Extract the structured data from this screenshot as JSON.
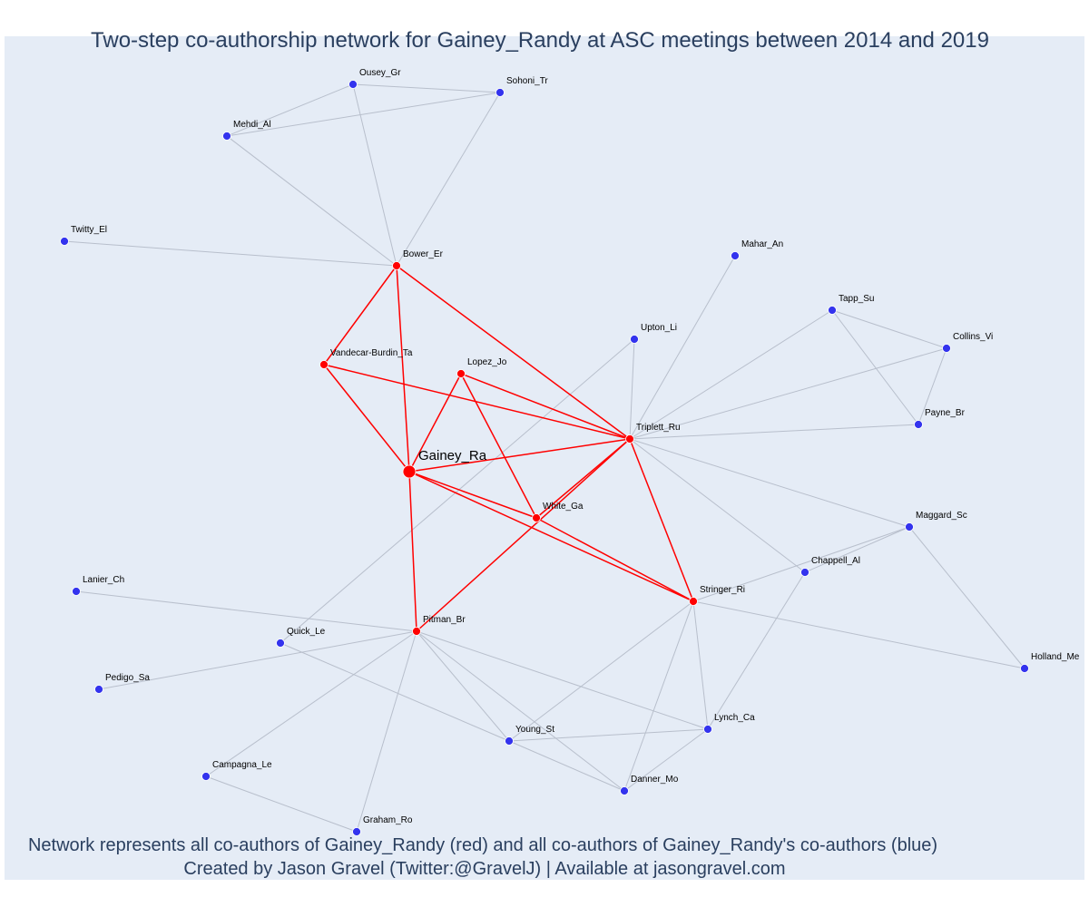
{
  "title": "Two-step co-authorship network for Gainey_Randy at ASC meetings between 2014 and 2019",
  "footer": {
    "line1": "Network represents all co-authors of Gainey_Randy (red) and all co-authors of Gainey_Randy's co-authors (blue)",
    "line2": "Created by Jason Gravel (Twitter:@GravelJ) | Available at jasongravel.com"
  },
  "colors": {
    "background": "#e5ecf6",
    "first_degree": "#ff0000",
    "second_degree": "#3333ee",
    "edge_first": "#ff0000",
    "edge_second": "#b8bfcc",
    "text": "#2a3f5f"
  },
  "nodes": [
    {
      "id": "Gainey_Ra",
      "label": "Gainey_Ra",
      "group": "center"
    },
    {
      "id": "Bower_Er",
      "label": "Bower_Er",
      "group": "first"
    },
    {
      "id": "Vandecar-Burdin_Ta",
      "label": "Vandecar-Burdin_Ta",
      "group": "first"
    },
    {
      "id": "Lopez_Jo",
      "label": "Lopez_Jo",
      "group": "first"
    },
    {
      "id": "Triplett_Ru",
      "label": "Triplett_Ru",
      "group": "first"
    },
    {
      "id": "White_Ga",
      "label": "White_Ga",
      "group": "first"
    },
    {
      "id": "Stringer_Ri",
      "label": "Stringer_Ri",
      "group": "first"
    },
    {
      "id": "Pitman_Br",
      "label": "Pitman_Br",
      "group": "first"
    },
    {
      "id": "Ousey_Gr",
      "label": "Ousey_Gr",
      "group": "second"
    },
    {
      "id": "Sohoni_Tr",
      "label": "Sohoni_Tr",
      "group": "second"
    },
    {
      "id": "Mehdi_Al",
      "label": "Mehdi_Al",
      "group": "second"
    },
    {
      "id": "Twitty_El",
      "label": "Twitty_El",
      "group": "second"
    },
    {
      "id": "Mahar_An",
      "label": "Mahar_An",
      "group": "second"
    },
    {
      "id": "Tapp_Su",
      "label": "Tapp_Su",
      "group": "second"
    },
    {
      "id": "Upton_Li",
      "label": "Upton_Li",
      "group": "second"
    },
    {
      "id": "Collins_Vi",
      "label": "Collins_Vi",
      "group": "second"
    },
    {
      "id": "Payne_Br",
      "label": "Payne_Br",
      "group": "second"
    },
    {
      "id": "Maggard_Sc",
      "label": "Maggard_Sc",
      "group": "second"
    },
    {
      "id": "Chappell_Al",
      "label": "Chappell_Al",
      "group": "second"
    },
    {
      "id": "Lanier_Ch",
      "label": "Lanier_Ch",
      "group": "second"
    },
    {
      "id": "Quick_Le",
      "label": "Quick_Le",
      "group": "second"
    },
    {
      "id": "Pedigo_Sa",
      "label": "Pedigo_Sa",
      "group": "second"
    },
    {
      "id": "Holland_Me",
      "label": "Holland_Me",
      "group": "second"
    },
    {
      "id": "Lynch_Ca",
      "label": "Lynch_Ca",
      "group": "second"
    },
    {
      "id": "Young_St",
      "label": "Young_St",
      "group": "second"
    },
    {
      "id": "Campagna_Le",
      "label": "Campagna_Le",
      "group": "second"
    },
    {
      "id": "Danner_Mo",
      "label": "Danner_Mo",
      "group": "second"
    },
    {
      "id": "Graham_Ro",
      "label": "Graham_Ro",
      "group": "second"
    }
  ],
  "edges": [
    {
      "source": "Gainey_Ra",
      "target": "Bower_Er",
      "type": "first"
    },
    {
      "source": "Gainey_Ra",
      "target": "Vandecar-Burdin_Ta",
      "type": "first"
    },
    {
      "source": "Gainey_Ra",
      "target": "Lopez_Jo",
      "type": "first"
    },
    {
      "source": "Gainey_Ra",
      "target": "Triplett_Ru",
      "type": "first"
    },
    {
      "source": "Gainey_Ra",
      "target": "White_Ga",
      "type": "first"
    },
    {
      "source": "Gainey_Ra",
      "target": "Stringer_Ri",
      "type": "first"
    },
    {
      "source": "Gainey_Ra",
      "target": "Pitman_Br",
      "type": "first"
    },
    {
      "source": "Bower_Er",
      "target": "Vandecar-Burdin_Ta",
      "type": "first"
    },
    {
      "source": "Bower_Er",
      "target": "Triplett_Ru",
      "type": "first"
    },
    {
      "source": "Vandecar-Burdin_Ta",
      "target": "Triplett_Ru",
      "type": "first"
    },
    {
      "source": "Lopez_Jo",
      "target": "Triplett_Ru",
      "type": "first"
    },
    {
      "source": "Lopez_Jo",
      "target": "White_Ga",
      "type": "first"
    },
    {
      "source": "Triplett_Ru",
      "target": "White_Ga",
      "type": "first"
    },
    {
      "source": "Triplett_Ru",
      "target": "Stringer_Ri",
      "type": "first"
    },
    {
      "source": "Triplett_Ru",
      "target": "Pitman_Br",
      "type": "first"
    },
    {
      "source": "White_Ga",
      "target": "Stringer_Ri",
      "type": "first"
    },
    {
      "source": "Bower_Er",
      "target": "Ousey_Gr",
      "type": "second"
    },
    {
      "source": "Bower_Er",
      "target": "Sohoni_Tr",
      "type": "second"
    },
    {
      "source": "Bower_Er",
      "target": "Mehdi_Al",
      "type": "second"
    },
    {
      "source": "Bower_Er",
      "target": "Twitty_El",
      "type": "second"
    },
    {
      "source": "Ousey_Gr",
      "target": "Sohoni_Tr",
      "type": "second"
    },
    {
      "source": "Ousey_Gr",
      "target": "Mehdi_Al",
      "type": "second"
    },
    {
      "source": "Mehdi_Al",
      "target": "Sohoni_Tr",
      "type": "second"
    },
    {
      "source": "Triplett_Ru",
      "target": "Mahar_An",
      "type": "second"
    },
    {
      "source": "Triplett_Ru",
      "target": "Upton_Li",
      "type": "second"
    },
    {
      "source": "Triplett_Ru",
      "target": "Tapp_Su",
      "type": "second"
    },
    {
      "source": "Triplett_Ru",
      "target": "Collins_Vi",
      "type": "second"
    },
    {
      "source": "Triplett_Ru",
      "target": "Payne_Br",
      "type": "second"
    },
    {
      "source": "Triplett_Ru",
      "target": "Maggard_Sc",
      "type": "second"
    },
    {
      "source": "Triplett_Ru",
      "target": "Chappell_Al",
      "type": "second"
    },
    {
      "source": "Tapp_Su",
      "target": "Collins_Vi",
      "type": "second"
    },
    {
      "source": "Tapp_Su",
      "target": "Payne_Br",
      "type": "second"
    },
    {
      "source": "Collins_Vi",
      "target": "Payne_Br",
      "type": "second"
    },
    {
      "source": "Upton_Li",
      "target": "Quick_Le",
      "type": "second"
    },
    {
      "source": "Maggard_Sc",
      "target": "Stringer_Ri",
      "type": "second"
    },
    {
      "source": "Maggard_Sc",
      "target": "Chappell_Al",
      "type": "second"
    },
    {
      "source": "Maggard_Sc",
      "target": "Holland_Me",
      "type": "second"
    },
    {
      "source": "Chappell_Al",
      "target": "Lynch_Ca",
      "type": "second"
    },
    {
      "source": "Stringer_Ri",
      "target": "Holland_Me",
      "type": "second"
    },
    {
      "source": "Stringer_Ri",
      "target": "Lynch_Ca",
      "type": "second"
    },
    {
      "source": "Stringer_Ri",
      "target": "Young_St",
      "type": "second"
    },
    {
      "source": "Stringer_Ri",
      "target": "Danner_Mo",
      "type": "second"
    },
    {
      "source": "Pitman_Br",
      "target": "Lanier_Ch",
      "type": "second"
    },
    {
      "source": "Pitman_Br",
      "target": "Pedigo_Sa",
      "type": "second"
    },
    {
      "source": "Pitman_Br",
      "target": "Campagna_Le",
      "type": "second"
    },
    {
      "source": "Pitman_Br",
      "target": "Graham_Ro",
      "type": "second"
    },
    {
      "source": "Pitman_Br",
      "target": "Young_St",
      "type": "second"
    },
    {
      "source": "Pitman_Br",
      "target": "Danner_Mo",
      "type": "second"
    },
    {
      "source": "Pitman_Br",
      "target": "Lynch_Ca",
      "type": "second"
    },
    {
      "source": "Quick_Le",
      "target": "Young_St",
      "type": "second"
    },
    {
      "source": "Young_St",
      "target": "Lynch_Ca",
      "type": "second"
    },
    {
      "source": "Young_St",
      "target": "Danner_Mo",
      "type": "second"
    },
    {
      "source": "Danner_Mo",
      "target": "Lynch_Ca",
      "type": "second"
    },
    {
      "source": "Campagna_Le",
      "target": "Graham_Ro",
      "type": "second"
    }
  ]
}
